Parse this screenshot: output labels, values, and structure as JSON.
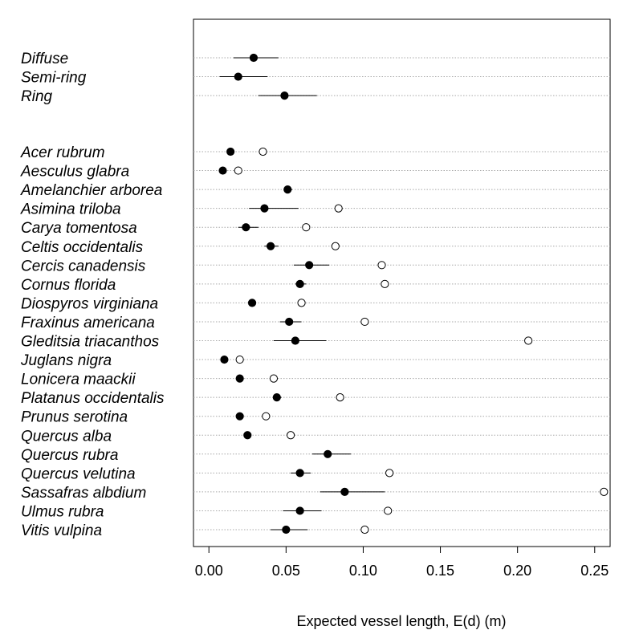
{
  "chart_data": {
    "type": "scatter",
    "subtype": "dot-plot-with-error-bars",
    "title": "",
    "xlabel": "Expected vessel length, E(d) (m)",
    "ylabel": "",
    "xlim": [
      -0.01,
      0.26
    ],
    "xticks": [
      0.0,
      0.05,
      0.1,
      0.15,
      0.2,
      0.25
    ],
    "xtick_labels": [
      "0.00",
      "0.05",
      "0.10",
      "0.15",
      "0.20",
      "0.25"
    ],
    "grid": "horizontal dotted lines per row",
    "legend": "none",
    "groups": [
      {
        "label": "Diffuse",
        "estimate": 0.029,
        "lower": 0.016,
        "upper": 0.045,
        "open": null
      },
      {
        "label": "Semi-ring",
        "estimate": 0.019,
        "lower": 0.007,
        "upper": 0.038,
        "open": null
      },
      {
        "label": "Ring",
        "estimate": 0.049,
        "lower": 0.032,
        "upper": 0.07,
        "open": null
      }
    ],
    "species": [
      {
        "label": "Acer rubrum",
        "estimate": 0.014,
        "lower": 0.014,
        "upper": 0.014,
        "open": 0.035
      },
      {
        "label": "Aesculus glabra",
        "estimate": 0.009,
        "lower": 0.009,
        "upper": 0.009,
        "open": 0.019
      },
      {
        "label": "Amelanchier arborea",
        "estimate": 0.051,
        "lower": 0.049,
        "upper": 0.054,
        "open": null
      },
      {
        "label": "Asimina triloba",
        "estimate": 0.036,
        "lower": 0.026,
        "upper": 0.058,
        "open": 0.084
      },
      {
        "label": "Carya tomentosa",
        "estimate": 0.024,
        "lower": 0.019,
        "upper": 0.032,
        "open": 0.063
      },
      {
        "label": "Celtis occidentalis",
        "estimate": 0.04,
        "lower": 0.036,
        "upper": 0.045,
        "open": 0.082
      },
      {
        "label": "Cercis canadensis",
        "estimate": 0.065,
        "lower": 0.055,
        "upper": 0.078,
        "open": 0.112
      },
      {
        "label": "Cornus florida",
        "estimate": 0.059,
        "lower": 0.056,
        "upper": 0.063,
        "open": 0.114
      },
      {
        "label": "Diospyros virginiana",
        "estimate": 0.028,
        "lower": 0.028,
        "upper": 0.028,
        "open": 0.06
      },
      {
        "label": "Fraxinus americana",
        "estimate": 0.052,
        "lower": 0.046,
        "upper": 0.06,
        "open": 0.101
      },
      {
        "label": "Gleditsia triacanthos",
        "estimate": 0.056,
        "lower": 0.042,
        "upper": 0.076,
        "open": 0.207
      },
      {
        "label": "Juglans nigra",
        "estimate": 0.01,
        "lower": 0.01,
        "upper": 0.01,
        "open": 0.02
      },
      {
        "label": "Lonicera maackii",
        "estimate": 0.02,
        "lower": 0.02,
        "upper": 0.02,
        "open": 0.042
      },
      {
        "label": "Platanus occidentalis",
        "estimate": 0.044,
        "lower": 0.042,
        "upper": 0.047,
        "open": 0.085
      },
      {
        "label": "Prunus serotina",
        "estimate": 0.02,
        "lower": 0.02,
        "upper": 0.02,
        "open": 0.037
      },
      {
        "label": "Quercus alba",
        "estimate": 0.025,
        "lower": 0.025,
        "upper": 0.025,
        "open": 0.053
      },
      {
        "label": "Quercus rubra",
        "estimate": 0.077,
        "lower": 0.067,
        "upper": 0.092,
        "open": null
      },
      {
        "label": "Quercus velutina",
        "estimate": 0.059,
        "lower": 0.053,
        "upper": 0.066,
        "open": 0.117
      },
      {
        "label": "Sassafras albdium",
        "estimate": 0.088,
        "lower": 0.072,
        "upper": 0.114,
        "open": 0.256
      },
      {
        "label": "Ulmus rubra",
        "estimate": 0.059,
        "lower": 0.048,
        "upper": 0.073,
        "open": 0.116
      },
      {
        "label": "Vitis vulpina",
        "estimate": 0.05,
        "lower": 0.04,
        "upper": 0.064,
        "open": 0.101
      }
    ]
  }
}
